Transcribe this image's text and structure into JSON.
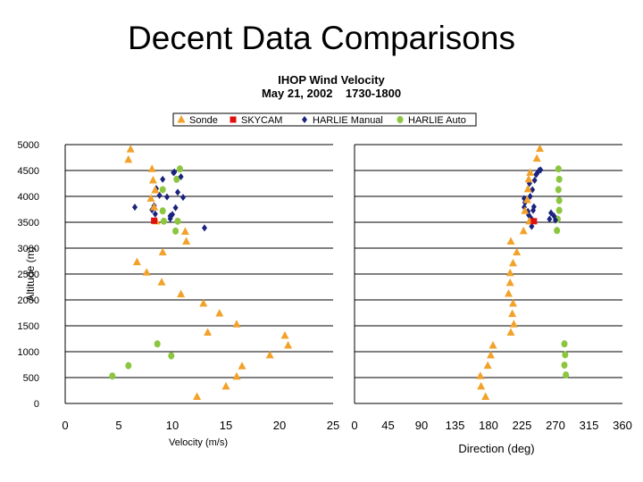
{
  "slide_title": "Decent Data Comparisons",
  "colors": {
    "sonde": "#f2a22b",
    "skycam": "#e01010",
    "harlie_manual": "#1a237e",
    "harlie_auto": "#8cc63f"
  },
  "chart_data": {
    "type": "scatter",
    "title": "IHOP Wind Velocity",
    "subtitle": "May 21, 2002    1730-1800",
    "ylabel": "Altitude (m)",
    "ylim": [
      0,
      5000
    ],
    "yticks": [
      "0",
      "500",
      "1000",
      "1500",
      "2000",
      "2500",
      "3000",
      "3500",
      "4000",
      "4500",
      "5000"
    ],
    "legend": [
      {
        "name": "Sonde",
        "marker": "triangle"
      },
      {
        "name": "SKYCAM",
        "marker": "square"
      },
      {
        "name": "HARLIE Manual",
        "marker": "diamond"
      },
      {
        "name": "HARLIE Auto",
        "marker": "circle"
      }
    ],
    "panels": [
      {
        "id": "velocity",
        "xlabel": "Velocity (m/s)",
        "xlim": [
          0,
          25
        ],
        "xticks": [
          "0",
          "5",
          "10",
          "15",
          "20",
          "25"
        ],
        "series": [
          {
            "name": "Sonde",
            "points": [
              [
                12.3,
                130
              ],
              [
                15,
                330
              ],
              [
                16,
                520
              ],
              [
                16.5,
                720
              ],
              [
                19.1,
                930
              ],
              [
                20.8,
                1120
              ],
              [
                20.5,
                1310
              ],
              [
                13.3,
                1370
              ],
              [
                16,
                1530
              ],
              [
                14.4,
                1740
              ],
              [
                12.9,
                1930
              ],
              [
                10.8,
                2110
              ],
              [
                9,
                2340
              ],
              [
                7.6,
                2530
              ],
              [
                6.7,
                2730
              ],
              [
                9.1,
                2920
              ],
              [
                11.3,
                3130
              ],
              [
                11.2,
                3320
              ],
              [
                8.5,
                3520
              ],
              [
                8.3,
                3790
              ],
              [
                8,
                3960
              ],
              [
                8.4,
                4120
              ],
              [
                8.2,
                4310
              ],
              [
                8.1,
                4530
              ],
              [
                5.9,
                4710
              ],
              [
                6.1,
                4910
              ]
            ]
          },
          {
            "name": "SKYCAM",
            "points": [
              [
                8.3,
                3530
              ]
            ]
          },
          {
            "name": "HARLIE Manual",
            "points": [
              [
                6.5,
                3790
              ],
              [
                8.1,
                3740
              ],
              [
                8.3,
                3820
              ],
              [
                8.4,
                3660
              ],
              [
                9.8,
                3570
              ],
              [
                9.8,
                3620
              ],
              [
                10,
                3650
              ],
              [
                10.3,
                3780
              ],
              [
                9.5,
                3990
              ],
              [
                10.5,
                4080
              ],
              [
                11,
                3980
              ],
              [
                8.8,
                4020
              ],
              [
                8.5,
                4150
              ],
              [
                9.1,
                4330
              ],
              [
                10.1,
                4460
              ],
              [
                10.8,
                4380
              ],
              [
                10.2,
                4470
              ],
              [
                13,
                3390
              ]
            ]
          },
          {
            "name": "HARLIE Auto",
            "points": [
              [
                4.4,
                530
              ],
              [
                5.9,
                730
              ],
              [
                8.6,
                1150
              ],
              [
                9.9,
                920
              ],
              [
                9.1,
                3720
              ],
              [
                9.2,
                3520
              ],
              [
                10.3,
                3330
              ],
              [
                10.5,
                3520
              ],
              [
                9.1,
                4130
              ],
              [
                10.4,
                4330
              ],
              [
                10.7,
                4530
              ]
            ]
          }
        ]
      },
      {
        "id": "direction",
        "xlabel": "Direction (deg)",
        "xlim": [
          0,
          360
        ],
        "xticks": [
          "0",
          "45",
          "90",
          "135",
          "180",
          "225",
          "270",
          "315",
          "360"
        ],
        "series": [
          {
            "name": "Sonde",
            "points": [
              [
                176,
                130
              ],
              [
                170,
                330
              ],
              [
                169,
                530
              ],
              [
                179,
                730
              ],
              [
                183,
                930
              ],
              [
                186,
                1120
              ],
              [
                210,
                1370
              ],
              [
                214,
                1530
              ],
              [
                212,
                1730
              ],
              [
                213,
                1930
              ],
              [
                207,
                2120
              ],
              [
                209,
                2330
              ],
              [
                209,
                2520
              ],
              [
                213,
                2710
              ],
              [
                218,
                2920
              ],
              [
                210,
                3130
              ],
              [
                227,
                3330
              ],
              [
                235,
                3520
              ],
              [
                229,
                3720
              ],
              [
                232,
                3930
              ],
              [
                233,
                4140
              ],
              [
                234,
                4330
              ],
              [
                236,
                4460
              ],
              [
                245,
                4730
              ],
              [
                249,
                4920
              ]
            ]
          },
          {
            "name": "SKYCAM",
            "points": [
              [
                241,
                3520
              ]
            ]
          },
          {
            "name": "HARLIE Manual",
            "points": [
              [
                228,
                3790
              ],
              [
                229,
                3880
              ],
              [
                233,
                3710
              ],
              [
                234,
                3640
              ],
              [
                237,
                3580
              ],
              [
                238,
                3420
              ],
              [
                240,
                3730
              ],
              [
                241,
                3800
              ],
              [
                236,
                4000
              ],
              [
                239,
                4130
              ],
              [
                244,
                4420
              ],
              [
                248,
                4500
              ],
              [
                245,
                4440
              ],
              [
                250,
                4510
              ],
              [
                262,
                3560
              ],
              [
                264,
                3680
              ],
              [
                268,
                3620
              ],
              [
                270,
                3540
              ],
              [
                242,
                4310
              ],
              [
                235,
                4250
              ],
              [
                228,
                3960
              ]
            ]
          },
          {
            "name": "HARLIE Auto",
            "points": [
              [
                284,
                550
              ],
              [
                282,
                740
              ],
              [
                283,
                940
              ],
              [
                282,
                1150
              ],
              [
                272,
                3340
              ],
              [
                273,
                3560
              ],
              [
                275,
                3730
              ],
              [
                275,
                3920
              ],
              [
                274,
                4130
              ],
              [
                275,
                4330
              ],
              [
                274,
                4530
              ]
            ]
          }
        ]
      }
    ]
  }
}
